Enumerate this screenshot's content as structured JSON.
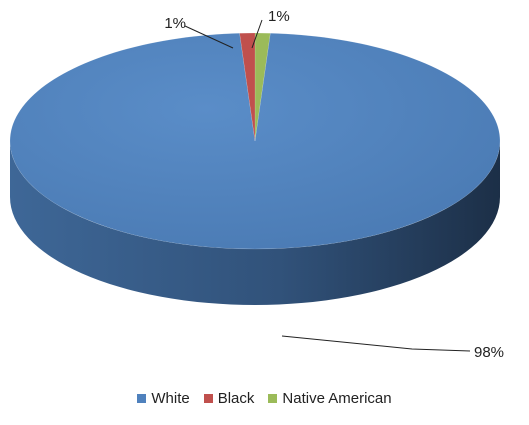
{
  "chart_data": {
    "type": "pie",
    "style": "3d",
    "categories": [
      "White",
      "Black",
      "Native American"
    ],
    "values": [
      98,
      1,
      1
    ],
    "labels": [
      "98%",
      "1%",
      "1%"
    ],
    "colors": [
      "#4F81BD",
      "#C0504D",
      "#9BBB59"
    ],
    "legend_position": "bottom"
  }
}
